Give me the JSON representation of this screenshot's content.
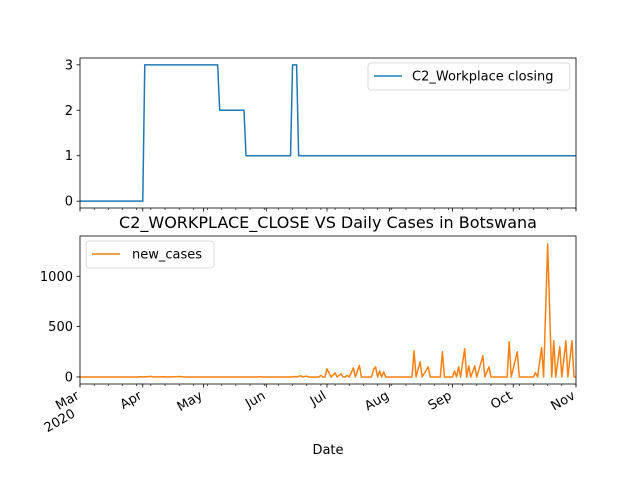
{
  "chart_data": [
    {
      "type": "line",
      "title": "",
      "xlabel": "",
      "ylabel": "",
      "ylim": [
        -0.15,
        3.15
      ],
      "yticks": [
        0,
        1,
        2,
        3
      ],
      "x_range": [
        "2020-03-01",
        "2020-11-01"
      ],
      "legend": {
        "position": "top-right"
      },
      "series": [
        {
          "name": "C2_Workplace closing",
          "color": "#1f77b4",
          "points": [
            [
              "2020-03-01",
              0
            ],
            [
              "2020-04-01",
              0
            ],
            [
              "2020-04-02",
              3
            ],
            [
              "2020-05-08",
              3
            ],
            [
              "2020-05-09",
              2
            ],
            [
              "2020-05-21",
              2
            ],
            [
              "2020-05-22",
              1
            ],
            [
              "2020-06-13",
              1
            ],
            [
              "2020-06-14",
              3
            ],
            [
              "2020-06-16",
              3
            ],
            [
              "2020-06-17",
              1
            ],
            [
              "2020-11-01",
              1
            ]
          ]
        }
      ]
    },
    {
      "type": "line",
      "title": "C2_WORKPLACE_CLOSE VS Daily Cases in Botswana",
      "xlabel": "Date",
      "ylabel": "",
      "ylim": [
        -70,
        1400
      ],
      "yticks": [
        0,
        500,
        1000
      ],
      "x_range": [
        "2020-03-01",
        "2020-11-01"
      ],
      "x_ticks": [
        {
          "date": "2020-03-01",
          "label": "Mar",
          "sublabel": "2020"
        },
        {
          "date": "2020-04-01",
          "label": "Apr"
        },
        {
          "date": "2020-05-01",
          "label": "May"
        },
        {
          "date": "2020-06-01",
          "label": "Jun"
        },
        {
          "date": "2020-07-01",
          "label": "Jul"
        },
        {
          "date": "2020-08-01",
          "label": "Aug"
        },
        {
          "date": "2020-09-01",
          "label": "Sep"
        },
        {
          "date": "2020-10-01",
          "label": "Oct"
        },
        {
          "date": "2020-11-01",
          "label": "Nov"
        }
      ],
      "legend": {
        "position": "top-left"
      },
      "series": [
        {
          "name": "new_cases",
          "color": "#ff7f0e",
          "points": [
            [
              "2020-03-01",
              0
            ],
            [
              "2020-03-30",
              0
            ],
            [
              "2020-03-31",
              3
            ],
            [
              "2020-04-01",
              0
            ],
            [
              "2020-04-05",
              6
            ],
            [
              "2020-04-06",
              0
            ],
            [
              "2020-04-12",
              2
            ],
            [
              "2020-04-13",
              0
            ],
            [
              "2020-04-20",
              4
            ],
            [
              "2020-04-21",
              0
            ],
            [
              "2020-05-28",
              0
            ],
            [
              "2020-05-29",
              3
            ],
            [
              "2020-05-30",
              0
            ],
            [
              "2020-06-14",
              0
            ],
            [
              "2020-06-15",
              5
            ],
            [
              "2020-06-16",
              0
            ],
            [
              "2020-06-18",
              12
            ],
            [
              "2020-06-19",
              0
            ],
            [
              "2020-06-21",
              8
            ],
            [
              "2020-06-22",
              0
            ],
            [
              "2020-06-27",
              0
            ],
            [
              "2020-06-28",
              15
            ],
            [
              "2020-06-29",
              0
            ],
            [
              "2020-06-30",
              0
            ],
            [
              "2020-07-01",
              80
            ],
            [
              "2020-07-02",
              40
            ],
            [
              "2020-07-03",
              0
            ],
            [
              "2020-07-05",
              40
            ],
            [
              "2020-07-06",
              0
            ],
            [
              "2020-07-08",
              30
            ],
            [
              "2020-07-09",
              0
            ],
            [
              "2020-07-10",
              0
            ],
            [
              "2020-07-11",
              15
            ],
            [
              "2020-07-12",
              0
            ],
            [
              "2020-07-14",
              90
            ],
            [
              "2020-07-15",
              0
            ],
            [
              "2020-07-17",
              115
            ],
            [
              "2020-07-18",
              0
            ],
            [
              "2020-07-23",
              0
            ],
            [
              "2020-07-24",
              75
            ],
            [
              "2020-07-25",
              100
            ],
            [
              "2020-07-26",
              0
            ],
            [
              "2020-07-27",
              60
            ],
            [
              "2020-07-28",
              0
            ],
            [
              "2020-07-29",
              50
            ],
            [
              "2020-07-30",
              0
            ],
            [
              "2020-08-12",
              0
            ],
            [
              "2020-08-13",
              260
            ],
            [
              "2020-08-14",
              0
            ],
            [
              "2020-08-16",
              150
            ],
            [
              "2020-08-17",
              0
            ],
            [
              "2020-08-20",
              100
            ],
            [
              "2020-08-21",
              0
            ],
            [
              "2020-08-26",
              0
            ],
            [
              "2020-08-27",
              250
            ],
            [
              "2020-08-28",
              0
            ],
            [
              "2020-09-01",
              0
            ],
            [
              "2020-09-02",
              60
            ],
            [
              "2020-09-03",
              0
            ],
            [
              "2020-09-04",
              100
            ],
            [
              "2020-09-05",
              0
            ],
            [
              "2020-09-07",
              280
            ],
            [
              "2020-09-08",
              0
            ],
            [
              "2020-09-09",
              110
            ],
            [
              "2020-09-10",
              0
            ],
            [
              "2020-09-12",
              110
            ],
            [
              "2020-09-13",
              0
            ],
            [
              "2020-09-16",
              210
            ],
            [
              "2020-09-17",
              0
            ],
            [
              "2020-09-19",
              100
            ],
            [
              "2020-09-20",
              0
            ],
            [
              "2020-09-28",
              0
            ],
            [
              "2020-09-29",
              350
            ],
            [
              "2020-09-30",
              0
            ],
            [
              "2020-10-03",
              250
            ],
            [
              "2020-10-04",
              0
            ],
            [
              "2020-10-11",
              0
            ],
            [
              "2020-10-12",
              40
            ],
            [
              "2020-10-13",
              0
            ],
            [
              "2020-10-15",
              290
            ],
            [
              "2020-10-16",
              0
            ],
            [
              "2020-10-18",
              1320
            ],
            [
              "2020-10-19",
              650
            ],
            [
              "2020-10-20",
              0
            ],
            [
              "2020-10-21",
              360
            ],
            [
              "2020-10-22",
              0
            ],
            [
              "2020-10-24",
              300
            ],
            [
              "2020-10-25",
              0
            ],
            [
              "2020-10-27",
              360
            ],
            [
              "2020-10-28",
              0
            ],
            [
              "2020-10-30",
              360
            ],
            [
              "2020-10-31",
              0
            ],
            [
              "2020-11-01",
              0
            ]
          ]
        }
      ]
    }
  ]
}
